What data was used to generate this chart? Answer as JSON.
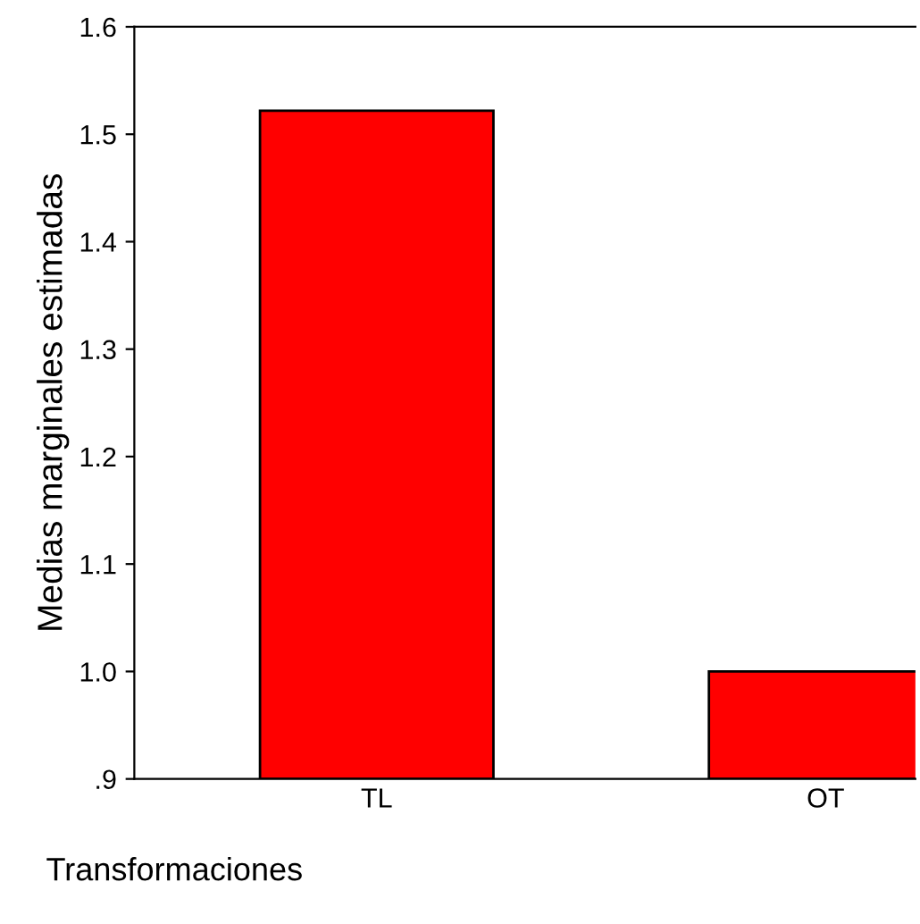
{
  "chart_data": {
    "type": "bar",
    "xlabel": "Transformaciones",
    "ylabel": "Medias marginales estimadas",
    "categories": [
      "TL",
      "OT"
    ],
    "values": [
      1.522,
      1.0
    ],
    "color": "#ff0000",
    "ylim": [
      0.9,
      1.6
    ],
    "yticks": [
      {
        "value": 0.9,
        "label": ".9"
      },
      {
        "value": 1.0,
        "label": "1.0"
      },
      {
        "value": 1.1,
        "label": "1.1"
      },
      {
        "value": 1.2,
        "label": "1.2"
      },
      {
        "value": 1.3,
        "label": "1.3"
      },
      {
        "value": 1.4,
        "label": "1.4"
      },
      {
        "value": 1.5,
        "label": "1.5"
      },
      {
        "value": 1.6,
        "label": "1.6"
      }
    ],
    "grid": false
  }
}
